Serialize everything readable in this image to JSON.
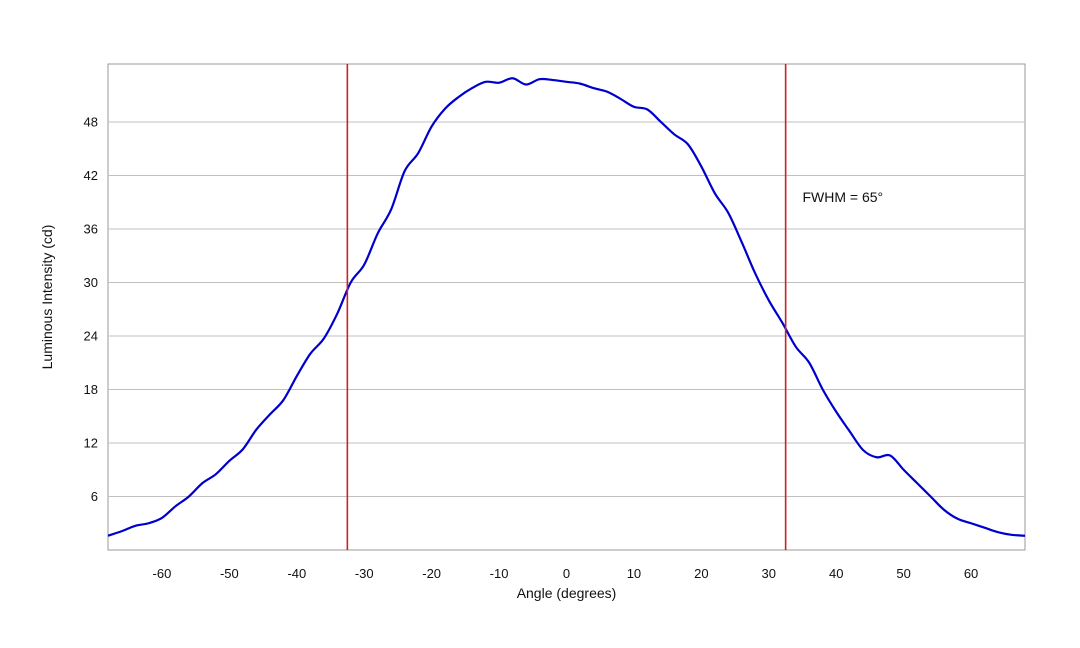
{
  "chart_data": {
    "type": "line",
    "title": "",
    "xlabel": "Angle (degrees)",
    "ylabel": "Luminous Intensity (cd)",
    "xlim": [
      -68,
      68
    ],
    "ylim": [
      0,
      54.5
    ],
    "x_ticks": [
      -60,
      -50,
      -40,
      -30,
      -20,
      -10,
      0,
      10,
      20,
      30,
      40,
      50,
      60
    ],
    "y_ticks": [
      6,
      12,
      18,
      24,
      30,
      36,
      42,
      48
    ],
    "grid": "horizontal",
    "colors": {
      "series": "#0000cc",
      "markers": "#cc2222",
      "grid": "#c0c0c0",
      "frame": "#999999"
    },
    "series": [
      {
        "x": [
          -68,
          -66,
          -64,
          -62,
          -60,
          -58,
          -56,
          -54,
          -52,
          -50,
          -48,
          -46,
          -44,
          -42,
          -40,
          -38,
          -36,
          -34,
          -32,
          -30,
          -28,
          -26,
          -24,
          -22,
          -20,
          -18,
          -16,
          -14,
          -12,
          -10,
          -8,
          -6,
          -4,
          -2,
          0,
          2,
          4,
          6,
          8,
          10,
          12,
          14,
          16,
          18,
          20,
          22,
          24,
          26,
          28,
          30,
          32,
          34,
          36,
          38,
          40,
          42,
          44,
          46,
          48,
          50,
          52,
          54,
          56,
          58,
          60,
          62,
          64,
          66,
          68
        ],
        "y": [
          1.6,
          2.1,
          2.7,
          3.0,
          3.6,
          4.9,
          6.0,
          7.5,
          8.5,
          10.0,
          11.3,
          13.5,
          15.2,
          16.8,
          19.5,
          22.0,
          23.7,
          26.5,
          30.0,
          32.0,
          35.5,
          38.2,
          42.5,
          44.5,
          47.5,
          49.5,
          50.8,
          51.8,
          52.5,
          52.4,
          52.9,
          52.2,
          52.8,
          52.7,
          52.5,
          52.3,
          51.8,
          51.4,
          50.6,
          49.7,
          49.4,
          48.0,
          46.6,
          45.5,
          43.0,
          40.0,
          37.8,
          34.5,
          31.0,
          28.0,
          25.5,
          22.8,
          21.0,
          18.0,
          15.5,
          13.3,
          11.2,
          10.4,
          10.6,
          9.0,
          7.5,
          6.0,
          4.5,
          3.5,
          3.0,
          2.5,
          2.0,
          1.7,
          1.6
        ]
      }
    ],
    "markers": [
      -32.5,
      32.5
    ],
    "annotations": [
      {
        "text": "FWHM = 65°",
        "x": 35,
        "y": 39
      }
    ]
  }
}
